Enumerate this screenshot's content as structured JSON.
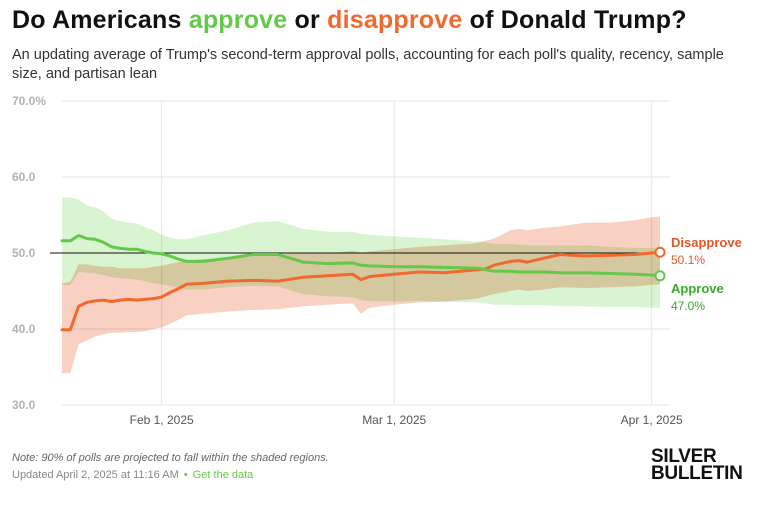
{
  "header": {
    "title_pre": "Do Americans ",
    "title_approve": "approve",
    "title_mid": " or ",
    "title_disapprove": "disapprove",
    "title_post": " of Donald Trump?",
    "subtitle": "An updating average of Trump's second-term approval polls, accounting for each poll's quality, recency, sample size, and partisan lean"
  },
  "footer": {
    "note": "Note: 90% of polls are projected to fall within the shaded regions.",
    "updated": "Updated April 2, 2025 at 11:16 AM",
    "separator": "•",
    "get_data_label": "Get the data",
    "logo_line1": "SILVER",
    "logo_line2": "BULLETIN"
  },
  "colors": {
    "approve": "#64c84a",
    "approve_label": "#3aa82a",
    "approve_band": "#c9f0bd",
    "disapprove": "#f0692f",
    "disapprove_label": "#e0582a",
    "disapprove_band": "#f7c2ad",
    "grid": "#e6e6e6",
    "reference": "#111111"
  },
  "chart_data": {
    "type": "line",
    "title": "Do Americans approve or disapprove of Donald Trump?",
    "x_axis": {
      "start_day": 0,
      "end_day": 72,
      "note": "x = days since Jan 20, 2025",
      "ticks": [
        {
          "day": 12,
          "label": "Feb 1, 2025"
        },
        {
          "day": 40,
          "label": "Mar 1, 2025"
        },
        {
          "day": 71,
          "label": "Apr 1, 2025"
        }
      ]
    },
    "y_axis": {
      "min": 30,
      "max": 70,
      "ticks": [
        "30.0",
        "40.0",
        "50.0",
        "60.0",
        "70.0%"
      ],
      "tick_values": [
        30,
        40,
        50,
        60,
        70
      ],
      "reference_line": 50
    },
    "series": [
      {
        "name": "Disapprove",
        "end_label": "Disapprove",
        "end_value": "50.1%",
        "x": [
          0,
          1,
          2,
          3,
          4,
          5,
          6,
          7,
          8,
          9,
          10,
          11,
          12,
          13,
          14,
          15,
          17,
          20,
          23,
          26,
          29,
          32,
          35,
          36,
          37,
          40,
          43,
          46,
          50,
          51,
          52,
          54,
          55,
          56,
          58,
          60,
          63,
          66,
          69,
          71,
          72
        ],
        "values": [
          39.9,
          39.9,
          43.0,
          43.5,
          43.7,
          43.8,
          43.6,
          43.8,
          43.9,
          43.8,
          43.9,
          44.0,
          44.2,
          44.8,
          45.3,
          45.9,
          46.0,
          46.3,
          46.4,
          46.3,
          46.8,
          47.0,
          47.2,
          46.5,
          46.9,
          47.2,
          47.5,
          47.4,
          47.8,
          47.9,
          48.4,
          48.9,
          49.0,
          48.8,
          49.3,
          49.8,
          49.6,
          49.7,
          49.8,
          50.0,
          50.1
        ],
        "band_upper": [
          46.0,
          46.2,
          48.5,
          48.5,
          48.3,
          48.2,
          48.2,
          48.0,
          48.0,
          48.0,
          48.0,
          48.2,
          48.3,
          48.6,
          48.8,
          49.0,
          49.2,
          49.3,
          49.6,
          49.8,
          50.0,
          49.9,
          50.3,
          50.0,
          50.2,
          50.5,
          50.8,
          51.0,
          51.3,
          51.6,
          51.9,
          53.0,
          53.2,
          53.0,
          53.3,
          53.5,
          54.0,
          54.0,
          54.3,
          54.7,
          54.8
        ],
        "band_lower": [
          34.2,
          34.2,
          38.0,
          38.5,
          39.0,
          39.3,
          39.5,
          39.5,
          39.6,
          39.6,
          39.7,
          40.0,
          40.2,
          40.7,
          41.2,
          41.8,
          42.0,
          42.3,
          42.5,
          42.6,
          43.0,
          43.2,
          43.4,
          42.0,
          42.8,
          43.2,
          43.5,
          43.6,
          44.0,
          44.3,
          44.6,
          45.0,
          45.2,
          45.0,
          45.2,
          45.5,
          45.4,
          45.5,
          45.6,
          45.8,
          45.9
        ]
      },
      {
        "name": "Approve",
        "end_label": "Approve",
        "end_value": "47.0%",
        "x": [
          0,
          1,
          2,
          3,
          4,
          5,
          6,
          7,
          8,
          9,
          10,
          11,
          12,
          13,
          14,
          15,
          17,
          20,
          23,
          26,
          29,
          32,
          35,
          36,
          37,
          40,
          43,
          46,
          50,
          51,
          52,
          54,
          55,
          56,
          58,
          60,
          63,
          66,
          69,
          71,
          72
        ],
        "values": [
          51.6,
          51.6,
          52.3,
          51.9,
          51.8,
          51.4,
          50.8,
          50.6,
          50.5,
          50.5,
          50.2,
          50.0,
          49.9,
          49.6,
          49.2,
          48.9,
          48.9,
          49.3,
          49.8,
          49.8,
          48.8,
          48.6,
          48.7,
          48.4,
          48.3,
          48.2,
          48.2,
          48.1,
          48.0,
          47.8,
          47.6,
          47.6,
          47.5,
          47.5,
          47.5,
          47.4,
          47.4,
          47.3,
          47.2,
          47.1,
          47.0
        ],
        "band_upper": [
          57.3,
          57.3,
          57.0,
          56.3,
          56.0,
          55.5,
          54.5,
          54.2,
          54.0,
          53.9,
          53.4,
          53.0,
          52.4,
          52.0,
          51.8,
          51.8,
          52.3,
          53.0,
          54.0,
          54.2,
          53.2,
          52.8,
          52.8,
          52.5,
          52.4,
          52.2,
          52.0,
          51.8,
          51.5,
          51.4,
          51.2,
          51.2,
          51.1,
          51.0,
          51.0,
          51.0,
          51.0,
          50.8,
          50.7,
          50.6,
          50.6
        ],
        "band_lower": [
          45.8,
          45.8,
          47.5,
          47.4,
          47.3,
          47.1,
          46.8,
          46.7,
          46.6,
          46.5,
          46.3,
          46.0,
          45.9,
          45.7,
          45.4,
          45.2,
          45.2,
          45.5,
          45.7,
          45.6,
          44.6,
          44.3,
          44.2,
          43.8,
          43.7,
          43.6,
          43.7,
          43.6,
          43.5,
          43.4,
          43.2,
          43.2,
          43.1,
          43.1,
          43.1,
          43.0,
          43.0,
          42.9,
          42.9,
          42.8,
          42.8
        ]
      }
    ]
  }
}
